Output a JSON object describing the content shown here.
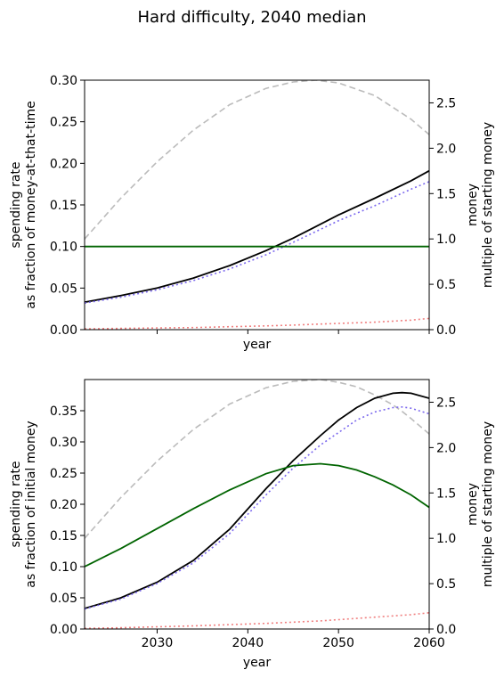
{
  "suptitle": "Hard difficulty, 2040 median",
  "colors": {
    "black": "#000000",
    "green": "#006400",
    "grey": "#bbbbbb",
    "purple": "#7b68ee",
    "red": "#f08080"
  },
  "chart_data": [
    {
      "type": "line",
      "title": "",
      "xlabel": "year",
      "ylabel_lines": [
        "spending rate",
        "as fraction of money-at-that-time"
      ],
      "ylabel2_lines": [
        "money",
        "multiple of starting money"
      ],
      "xlim": [
        2022,
        2060
      ],
      "ylim": [
        0,
        0.3
      ],
      "y2lim": [
        0,
        2.75
      ],
      "show_xtick_labels": false,
      "yticks": [
        "0.00",
        "0.05",
        "0.10",
        "0.15",
        "0.20",
        "0.25",
        "0.30"
      ],
      "y2ticks": [
        "0.0",
        "0.5",
        "1.0",
        "1.5",
        "2.0",
        "2.5"
      ],
      "x": [
        2022,
        2026,
        2030,
        2034,
        2038,
        2042,
        2045,
        2047.5,
        2050,
        2054,
        2058,
        2060
      ],
      "series": [
        {
          "axis": "y",
          "color": "grey",
          "dash": "dashed",
          "values": [
            1.0,
            1.45,
            1.85,
            2.2,
            2.48,
            2.66,
            2.73,
            2.75,
            2.72,
            2.58,
            2.32,
            2.15
          ]
        },
        {
          "axis": "y",
          "color": "black",
          "dash": "solid",
          "values": [
            0.033,
            0.041,
            0.05,
            0.062,
            0.077,
            0.095,
            0.11,
            0.124,
            0.138,
            0.158,
            0.179,
            0.191
          ]
        },
        {
          "axis": "y",
          "color": "purple",
          "dash": "dotted",
          "values": [
            0.032,
            0.039,
            0.048,
            0.059,
            0.073,
            0.09,
            0.105,
            0.118,
            0.131,
            0.149,
            0.169,
            0.178
          ]
        },
        {
          "axis": "y",
          "color": "red",
          "dash": "dotted",
          "values": [
            0.001,
            0.0015,
            0.002,
            0.0025,
            0.0035,
            0.0045,
            0.0055,
            0.0065,
            0.0075,
            0.009,
            0.0115,
            0.0135
          ]
        },
        {
          "axis": "y",
          "color": "green",
          "dash": "solid",
          "values": [
            0.1,
            0.1,
            0.1,
            0.1,
            0.1,
            0.1,
            0.1,
            0.1,
            0.1,
            0.1,
            0.1,
            0.1
          ]
        }
      ]
    },
    {
      "type": "line",
      "title": "",
      "xlabel": "year",
      "ylabel_lines": [
        "spending rate",
        "as fraction of initial money"
      ],
      "ylabel2_lines": [
        "money",
        "multiple of starting money"
      ],
      "xlim": [
        2022,
        2060
      ],
      "ylim": [
        0,
        0.4
      ],
      "y2lim": [
        0,
        2.75
      ],
      "show_xtick_labels": true,
      "xticks": [
        "2030",
        "2040",
        "2050",
        "2060"
      ],
      "yticks": [
        "0.00",
        "0.05",
        "0.10",
        "0.15",
        "0.20",
        "0.25",
        "0.30",
        "0.35"
      ],
      "y2ticks": [
        "0.0",
        "0.5",
        "1.0",
        "1.5",
        "2.0",
        "2.5"
      ],
      "x": [
        2022,
        2026,
        2030,
        2034,
        2038,
        2042,
        2045,
        2048,
        2050,
        2052,
        2054,
        2056,
        2057,
        2058,
        2060
      ],
      "series": [
        {
          "axis": "y",
          "color": "grey",
          "dash": "dashed",
          "values": [
            1.0,
            1.45,
            1.85,
            2.2,
            2.48,
            2.66,
            2.73,
            2.75,
            2.72,
            2.67,
            2.58,
            2.47,
            2.4,
            2.32,
            2.15
          ]
        },
        {
          "axis": "y",
          "color": "black",
          "dash": "solid",
          "values": [
            0.033,
            0.05,
            0.075,
            0.11,
            0.16,
            0.225,
            0.27,
            0.31,
            0.335,
            0.355,
            0.37,
            0.378,
            0.379,
            0.378,
            0.37
          ]
        },
        {
          "axis": "y",
          "color": "purple",
          "dash": "dotted",
          "values": [
            0.032,
            0.048,
            0.073,
            0.106,
            0.153,
            0.215,
            0.258,
            0.295,
            0.315,
            0.335,
            0.348,
            0.355,
            0.356,
            0.354,
            0.345
          ]
        },
        {
          "axis": "y",
          "color": "red",
          "dash": "dotted",
          "values": [
            0.001,
            0.002,
            0.0035,
            0.005,
            0.007,
            0.009,
            0.011,
            0.013,
            0.015,
            0.017,
            0.019,
            0.021,
            0.022,
            0.023,
            0.026
          ]
        },
        {
          "axis": "y",
          "color": "green",
          "dash": "solid",
          "values": [
            0.1,
            0.129,
            0.161,
            0.193,
            0.223,
            0.249,
            0.262,
            0.265,
            0.262,
            0.255,
            0.244,
            0.231,
            0.223,
            0.215,
            0.195
          ]
        }
      ]
    }
  ]
}
